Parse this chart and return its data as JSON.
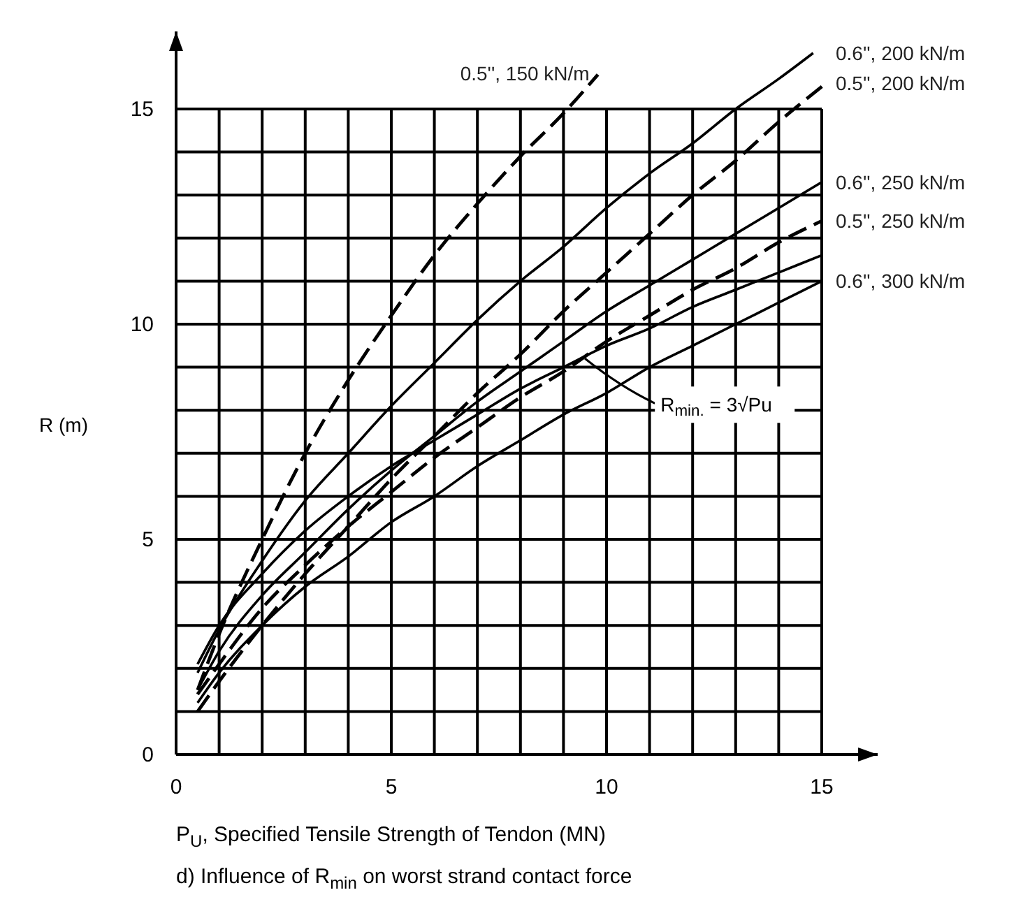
{
  "chart_data": {
    "type": "line",
    "xlabel": "P$_{U}$, Specified Tensile Strength of Tendon (MN)",
    "ylabel": "R (m)",
    "xlim": [
      0,
      16.3
    ],
    "ylim": [
      0,
      16.8
    ],
    "xticks": [
      0,
      {
        "value": 1,
        "label": null
      },
      {
        "value": 2,
        "label": null
      },
      {
        "value": 3,
        "label": null
      },
      {
        "value": 4,
        "label": null
      },
      5,
      {
        "value": 6,
        "label": null
      },
      {
        "value": 7,
        "label": null
      },
      {
        "value": 8,
        "label": null
      },
      {
        "value": 9,
        "label": null
      },
      10,
      {
        "value": 11,
        "label": null
      },
      {
        "value": 12,
        "label": null
      },
      {
        "value": 13,
        "label": null
      },
      {
        "value": 14,
        "label": null
      },
      15
    ],
    "yticks": [
      0,
      {
        "value": 1,
        "label": null
      },
      {
        "value": 2,
        "label": null
      },
      {
        "value": 3,
        "label": null
      },
      {
        "value": 4,
        "label": null
      },
      5,
      {
        "value": 6,
        "label": null
      },
      {
        "value": 7,
        "label": null
      },
      {
        "value": 8,
        "label": null
      },
      {
        "value": 9,
        "label": null
      },
      10,
      {
        "value": 11,
        "label": null
      },
      {
        "value": 12,
        "label": null
      },
      {
        "value": 13,
        "label": null
      },
      {
        "value": 14,
        "label": null
      },
      15
    ],
    "grid": true,
    "marker": "none",
    "series": [
      {
        "name": "0.5'', 150 kN/m",
        "color": "#000000",
        "line_style": "dashed",
        "x": [
          0.5,
          1,
          2,
          3,
          4,
          5,
          6,
          7,
          8,
          9,
          9.8
        ],
        "values": [
          1.5,
          2.8,
          5,
          7,
          8.7,
          10.2,
          11.6,
          12.8,
          13.9,
          14.9,
          15.8
        ]
      },
      {
        "name": "0.6'', 200 kN/m",
        "color": "#000000",
        "line_style": "solid",
        "x": [
          0.5,
          1,
          2,
          3,
          4,
          5,
          6,
          7,
          8,
          9,
          10,
          11,
          12,
          13,
          14,
          14.8
        ],
        "values": [
          1.9,
          2.9,
          4.5,
          5.9,
          7,
          8.1,
          9.1,
          10.1,
          11,
          11.8,
          12.7,
          13.5,
          14.2,
          15,
          15.7,
          16.3
        ]
      },
      {
        "name": "0.5'', 200 kN/m",
        "color": "#000000",
        "line_style": "dashed",
        "x": [
          0.5,
          1,
          2,
          3,
          4,
          5,
          6,
          7,
          8,
          9,
          10,
          11,
          12,
          13,
          14,
          15.1
        ],
        "values": [
          1,
          1.7,
          3,
          4.2,
          5.3,
          6.4,
          7.4,
          8.4,
          9.3,
          10.3,
          11.2,
          12.1,
          13,
          13.8,
          14.7,
          15.6
        ]
      },
      {
        "name": "0.6'', 250 kN/m",
        "color": "#000000",
        "line_style": "solid",
        "x": [
          0.5,
          1,
          2,
          3,
          4,
          5,
          6,
          7,
          8,
          9,
          10,
          11,
          12,
          13,
          14,
          15
        ],
        "values": [
          1.5,
          2.4,
          3.7,
          4.7,
          5.7,
          6.6,
          7.4,
          8.2,
          8.9,
          9.6,
          10.3,
          10.9,
          11.5,
          12.1,
          12.7,
          13.3
        ]
      },
      {
        "name": "0.5'', 250 kN/m",
        "color": "#000000",
        "line_style": "dashed",
        "x": [
          0.5,
          1,
          2,
          3,
          4,
          5,
          6,
          7,
          8,
          9,
          10,
          11,
          12,
          13,
          14,
          15
        ],
        "values": [
          1.4,
          2.1,
          3.4,
          4.4,
          5.3,
          6.1,
          6.9,
          7.6,
          8.3,
          8.9,
          9.6,
          10.2,
          10.8,
          11.3,
          11.9,
          12.4
        ]
      },
      {
        "name": "0.6'', 300 kN/m",
        "color": "#000000",
        "line_style": "solid",
        "x": [
          0.5,
          1,
          2,
          3,
          4,
          5,
          6,
          7,
          8,
          9,
          10,
          11,
          12,
          13,
          14,
          15
        ],
        "values": [
          1.2,
          1.9,
          3,
          3.9,
          4.6,
          5.4,
          6,
          6.7,
          7.3,
          7.9,
          8.4,
          9,
          9.5,
          10,
          10.5,
          11
        ]
      },
      {
        "color": "#000000",
        "line_style": "solid",
        "x": [
          0.5,
          1,
          2,
          3,
          4,
          5,
          6,
          7,
          8,
          9,
          10,
          11,
          12,
          13,
          14,
          15
        ],
        "values": [
          2.1,
          3,
          4.2,
          5.2,
          6,
          6.7,
          7.3,
          7.9,
          8.5,
          9,
          9.5,
          9.9,
          10.4,
          10.8,
          11.2,
          11.6
        ]
      }
    ],
    "annotations": [
      {
        "text": "R$_{min.}$ = 3√Pu",
        "x": 9.5,
        "y": 9.2
      },
      "d) Influence of R$_{min}$ on worst strand contact force"
    ]
  }
}
